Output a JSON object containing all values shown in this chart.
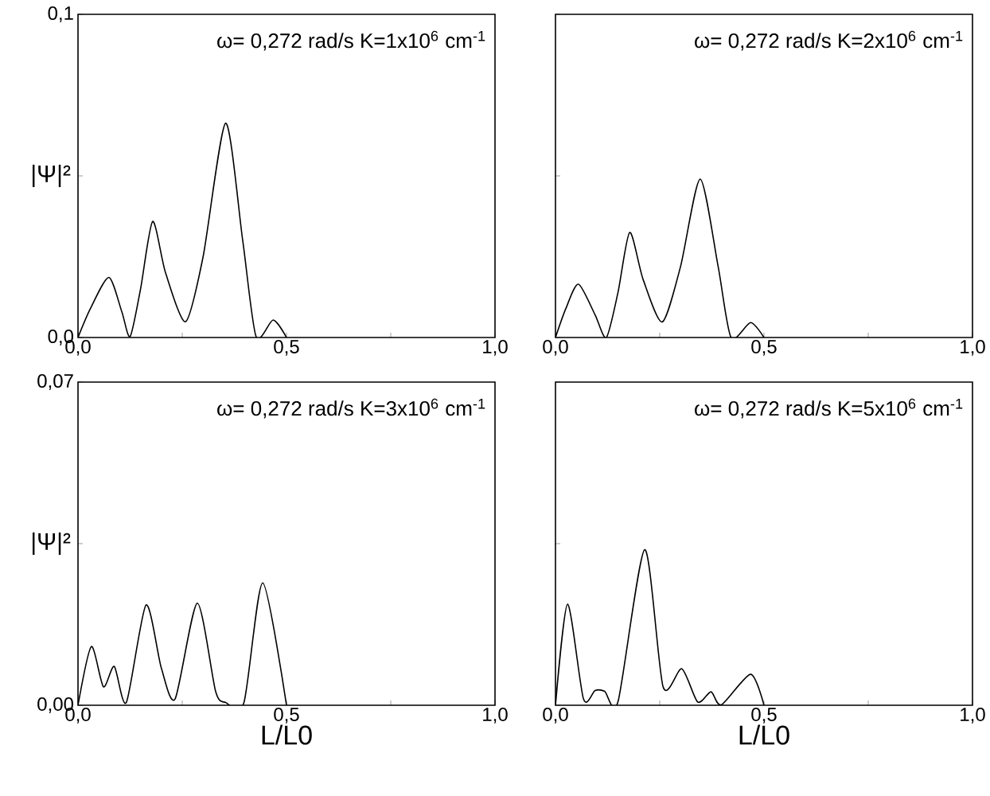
{
  "chart_data": [
    {
      "type": "line",
      "annotations": [
        "ω= 0,272 rad/s  K=1x10$^{6}$ cm$^{-1}$"
      ],
      "ylabel": "|Ψ|²",
      "xlim": [
        0,
        1
      ],
      "ylim": [
        0,
        0.1
      ],
      "xticks": [
        {
          "value": 0,
          "label": "0,0"
        },
        {
          "value": 0.25,
          "label": null
        },
        {
          "value": 0.5,
          "label": "0,5"
        },
        {
          "value": 0.75,
          "label": null
        },
        {
          "value": 1,
          "label": "1,0"
        }
      ],
      "yticks": [
        {
          "value": 0,
          "label": "0,0"
        },
        {
          "value": 0.05,
          "label": null
        },
        {
          "value": 0.1,
          "label": "0,1"
        }
      ],
      "series": [
        {
          "color": "#000000",
          "x": [
            0,
            0.03,
            0.074,
            0.105,
            0.125,
            0.15,
            0.179,
            0.21,
            0.258,
            0.3,
            0.354,
            0.395,
            0.427,
            0.468,
            0.5
          ],
          "values": [
            0,
            0.009,
            0.0186,
            0.008,
            0.0003,
            0.015,
            0.0359,
            0.02,
            0.0049,
            0.025,
            0.0663,
            0.03,
            0.0003,
            0.0054,
            0
          ]
        }
      ]
    },
    {
      "type": "line",
      "annotations": [
        "ω= 0,272 rad/s  K=2x10$^{6}$ cm$^{-1}$"
      ],
      "tick_labels": "x",
      "xlim": [
        0,
        1
      ],
      "ylim": [
        0,
        0.1
      ],
      "xticks": [
        {
          "value": 0,
          "label": "0,0"
        },
        {
          "value": 0.25,
          "label": null
        },
        {
          "value": 0.5,
          "label": "0,5"
        },
        {
          "value": 0.75,
          "label": null
        },
        {
          "value": 1,
          "label": "1,0"
        }
      ],
      "yticks": [
        {
          "value": 0,
          "label": null
        },
        {
          "value": 0.05,
          "label": null
        },
        {
          "value": 0.1,
          "label": null
        }
      ],
      "series": [
        {
          "color": "#000000",
          "x": [
            0,
            0.025,
            0.055,
            0.095,
            0.122,
            0.15,
            0.178,
            0.21,
            0.256,
            0.3,
            0.347,
            0.39,
            0.421,
            0.468,
            0.5
          ],
          "values": [
            0,
            0.009,
            0.0165,
            0.007,
            0,
            0.014,
            0.0325,
            0.018,
            0.0048,
            0.022,
            0.049,
            0.022,
            0,
            0.0046,
            0
          ]
        }
      ]
    },
    {
      "type": "line",
      "annotations": [
        "ω= 0,272 rad/s  K=3x10$^{6}$ cm$^{-1}$"
      ],
      "ylabel": "|Ψ|²",
      "xlabel": "L/L0",
      "xlim": [
        0,
        1
      ],
      "ylim": [
        0,
        0.07
      ],
      "xticks": [
        {
          "value": 0,
          "label": "0,0"
        },
        {
          "value": 0.25,
          "label": null
        },
        {
          "value": 0.5,
          "label": "0,5"
        },
        {
          "value": 0.75,
          "label": null
        },
        {
          "value": 1,
          "label": "1,0"
        }
      ],
      "yticks": [
        {
          "value": 0,
          "label": "0,00"
        },
        {
          "value": 0.035,
          "label": null
        },
        {
          "value": 0.07,
          "label": "0,07"
        }
      ],
      "series": [
        {
          "color": "#000000",
          "x": [
            0,
            0.032,
            0.061,
            0.087,
            0.116,
            0.163,
            0.2,
            0.233,
            0.286,
            0.33,
            0.354,
            0.398,
            0.443,
            0.5
          ],
          "values": [
            0,
            0.0127,
            0.004,
            0.0084,
            0.0006,
            0.0217,
            0.008,
            0.0014,
            0.0221,
            0.003,
            0.0006,
            0.0006,
            0.0265,
            0
          ]
        }
      ]
    },
    {
      "type": "line",
      "annotations": [
        "ω= 0,272 rad/s  K=5x10$^{6}$ cm$^{-1}$"
      ],
      "xlabel": "L/L0",
      "tick_labels": "x",
      "xlim": [
        0,
        1
      ],
      "ylim": [
        0,
        0.07
      ],
      "xticks": [
        {
          "value": 0,
          "label": "0,0"
        },
        {
          "value": 0.25,
          "label": null
        },
        {
          "value": 0.5,
          "label": "0,5"
        },
        {
          "value": 0.75,
          "label": null
        },
        {
          "value": 1,
          "label": "1,0"
        }
      ],
      "yticks": [
        {
          "value": 0,
          "label": null
        },
        {
          "value": 0.035,
          "label": null
        },
        {
          "value": 0.07,
          "label": null
        }
      ],
      "series": [
        {
          "color": "#000000",
          "x": [
            0,
            0.029,
            0.067,
            0.095,
            0.118,
            0.15,
            0.214,
            0.258,
            0.303,
            0.341,
            0.373,
            0.398,
            0.468,
            0.5
          ],
          "values": [
            0,
            0.0219,
            0.0014,
            0.0032,
            0.003,
            0.0008,
            0.0337,
            0.004,
            0.0079,
            0.0007,
            0.0029,
            0.0001,
            0.0067,
            0
          ]
        }
      ]
    }
  ]
}
